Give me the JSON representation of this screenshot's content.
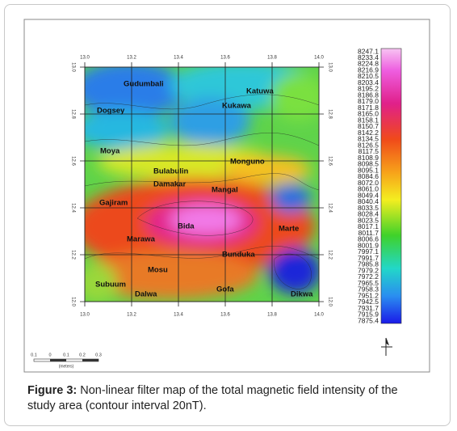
{
  "figure": {
    "x_ticks": [
      "13.0",
      "13.2",
      "13.4",
      "13.6",
      "13.8",
      "14.0"
    ],
    "y_ticks": [
      "13.0",
      "12.8",
      "12.6",
      "12.4",
      "12.2",
      "12.0"
    ],
    "colorbar_labels": [
      "8247.1",
      "8233.4",
      "8224.8",
      "8216.9",
      "8210.5",
      "8203.4",
      "8195.2",
      "8186.8",
      "8179.0",
      "8171.8",
      "8165.0",
      "8158.1",
      "8150.7",
      "8142.2",
      "8134.5",
      "8126.5",
      "8117.5",
      "8108.9",
      "8098.5",
      "8095.1",
      "8084.6",
      "8072.0",
      "8061.0",
      "8049.4",
      "8040.4",
      "8033.5",
      "8028.4",
      "8023.5",
      "8017.1",
      "8011.7",
      "8006.6",
      "8001.9",
      "7997.1",
      "7991.7",
      "7985.8",
      "7979.2",
      "7972.2",
      "7965.5",
      "7958.3",
      "7951.2",
      "7942.5",
      "7931.7",
      "7915.9",
      "7875.4"
    ],
    "places": [
      "Gudumbali",
      "Katuwa",
      "Kukawa",
      "Dogsey",
      "Moya",
      "Monguno",
      "Bulabulin",
      "Damakar",
      "Mangal",
      "Gajiram",
      "Bida",
      "Marawa",
      "Marte",
      "Bunduka",
      "Mosu",
      "Subuum",
      "Dalwa",
      "Gofa",
      "Dikwa"
    ],
    "scale_bar": {
      "labels": [
        "0.1",
        "0",
        "0.1",
        "0.2",
        "0.3"
      ],
      "unit": "(meters)"
    }
  },
  "caption": {
    "label": "Figure 3:",
    "text": "Non-linear filter map of the total magnetic field intensity of the study area (contour interval 20nT)."
  }
}
